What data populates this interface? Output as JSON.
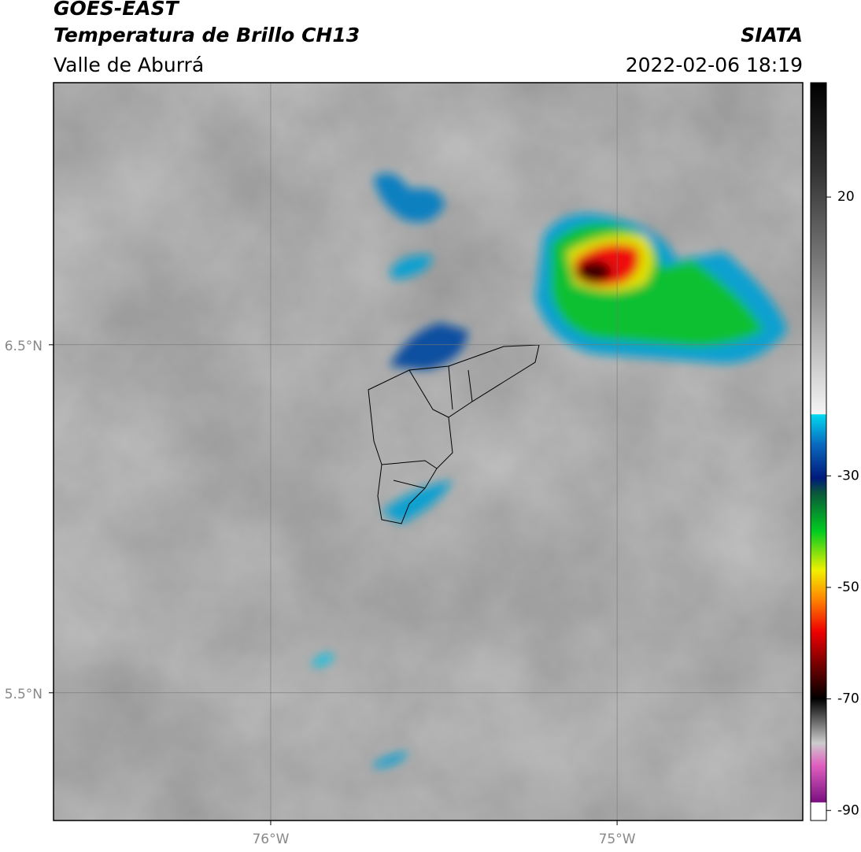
{
  "header": {
    "title": "GOES-EAST",
    "subtitle": "Temperatura de Brillo CH13",
    "region": "Valle de Aburrá",
    "source": "SIATA",
    "datetime": "2022-02-06 18:19"
  },
  "map": {
    "xlim": [
      -76.627,
      -74.464
    ],
    "ylim": [
      5.133,
      7.253
    ],
    "xticks": [
      {
        "value": -76,
        "label": "76°W"
      },
      {
        "value": -75,
        "label": "75°W"
      }
    ],
    "yticks": [
      {
        "value": 6.5,
        "label": "6.5°N"
      },
      {
        "value": 5.5,
        "label": "5.5°N"
      }
    ]
  },
  "colorbar": {
    "lim": [
      -91.8,
      40.5
    ],
    "ticks": [
      20,
      -30,
      -50,
      -70,
      -90
    ]
  }
}
